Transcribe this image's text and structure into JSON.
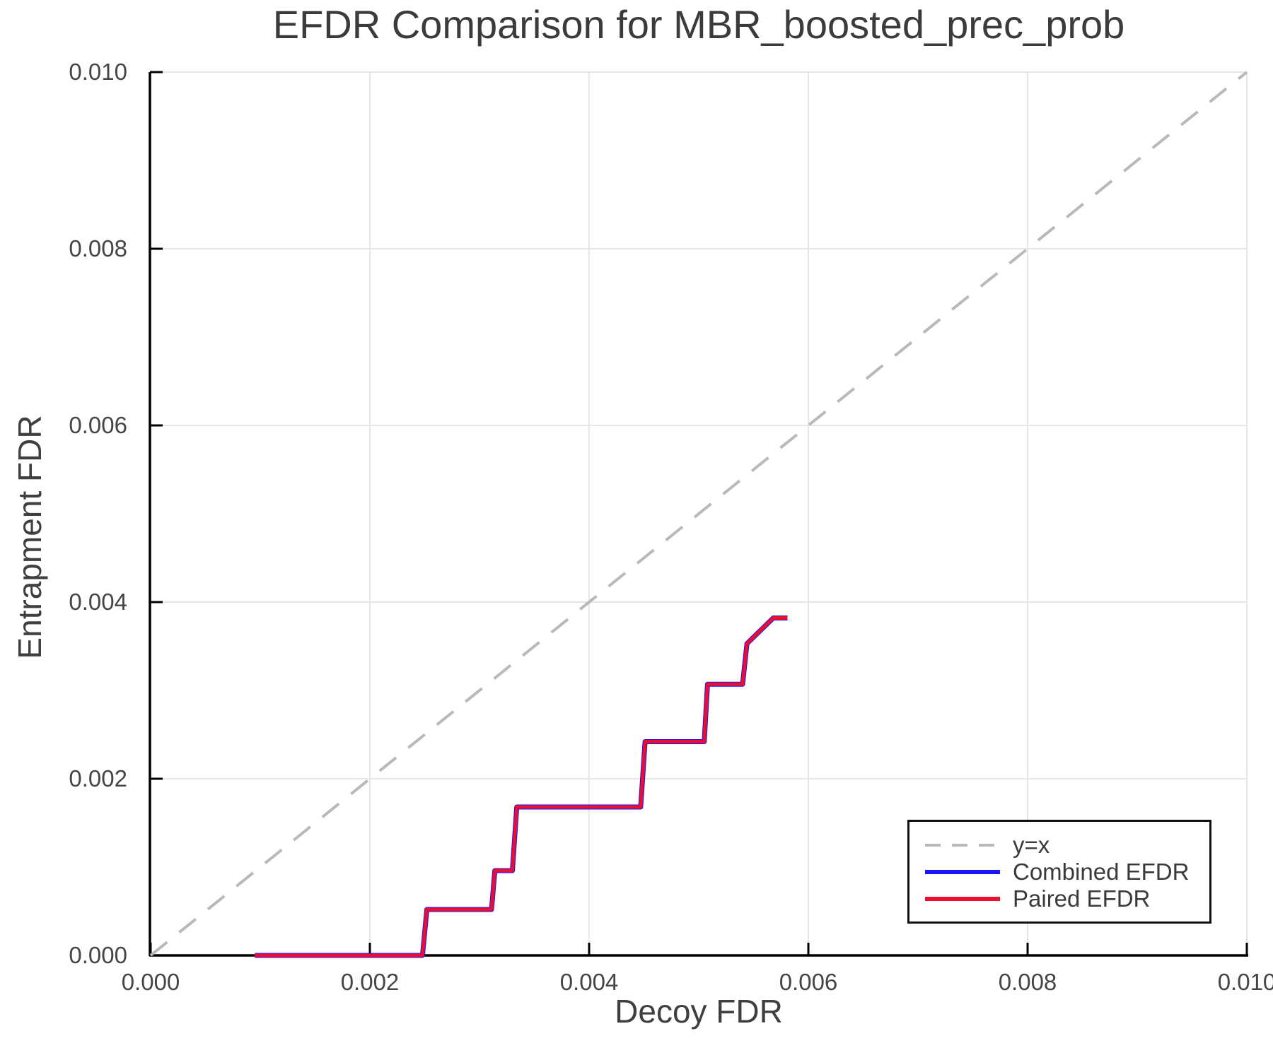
{
  "chart_data": {
    "type": "line",
    "title": "EFDR Comparison for MBR_boosted_prec_prob",
    "xlabel": "Decoy FDR",
    "ylabel": "Entrapment FDR",
    "xlim": [
      0.0,
      0.01
    ],
    "ylim": [
      0.0,
      0.01
    ],
    "xtick_labels": [
      "0.000",
      "0.002",
      "0.004",
      "0.006",
      "0.008",
      "0.010"
    ],
    "ytick_labels": [
      "0.000",
      "0.002",
      "0.004",
      "0.006",
      "0.008",
      "0.010"
    ],
    "grid": true,
    "grid_color": "#e6e6e6",
    "spine_color": "#000000",
    "legend_position": "lower right",
    "series": [
      {
        "name": "y=x",
        "line_style": "dashed",
        "color": "#b9b9b9",
        "x": [
          0.0,
          0.01
        ],
        "y": [
          0.0,
          0.01
        ]
      },
      {
        "name": "Combined EFDR",
        "line_style": "solid",
        "color": "#1a14ff",
        "x": [
          0.00095,
          0.00248,
          0.00252,
          0.00311,
          0.00314,
          0.0033,
          0.00334,
          0.00447,
          0.00451,
          0.00505,
          0.00508,
          0.0054,
          0.00544,
          0.00568,
          0.00581
        ],
        "y": [
          0.0,
          0.0,
          0.00052,
          0.00052,
          0.00096,
          0.00096,
          0.00168,
          0.00168,
          0.00242,
          0.00242,
          0.00307,
          0.00307,
          0.00353,
          0.00382,
          0.00382
        ]
      },
      {
        "name": "Paired EFDR",
        "line_style": "solid",
        "color": "#e9102d",
        "x": [
          0.00095,
          0.00248,
          0.00252,
          0.00311,
          0.00314,
          0.0033,
          0.00334,
          0.00447,
          0.00451,
          0.00505,
          0.00508,
          0.0054,
          0.00544,
          0.00568,
          0.00581
        ],
        "y": [
          0.0,
          0.0,
          0.00052,
          0.00052,
          0.00096,
          0.00096,
          0.00168,
          0.00168,
          0.00242,
          0.00242,
          0.00307,
          0.00307,
          0.00353,
          0.00382,
          0.00382
        ]
      }
    ]
  }
}
